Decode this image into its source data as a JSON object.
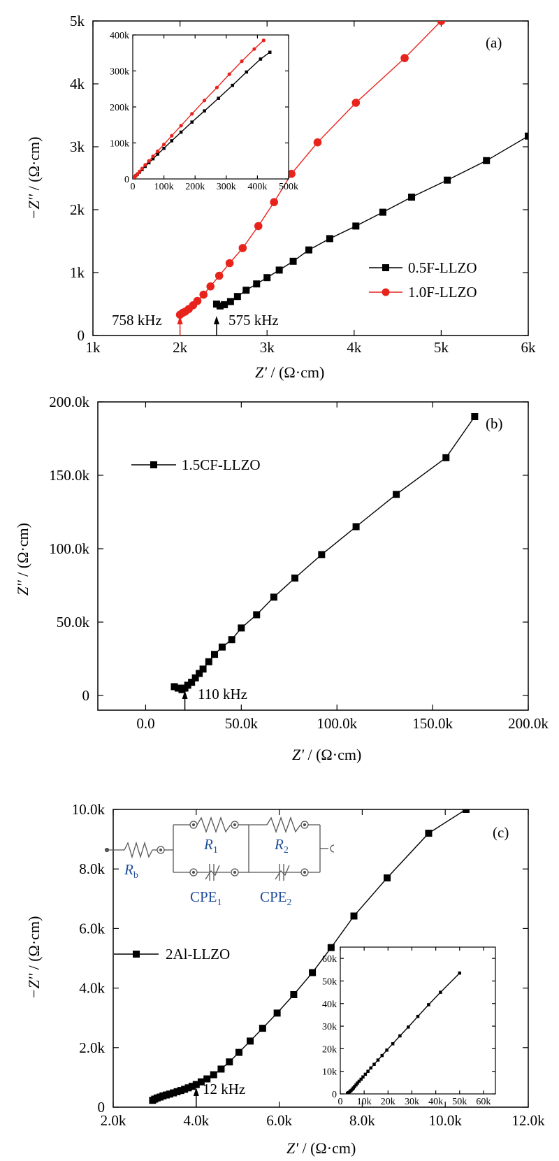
{
  "colors": {
    "black_series": "#000000",
    "red_series": "#e8231c",
    "circuit_label": "#1f4e9a",
    "circuit_line": "#555555"
  },
  "chart_data": [
    {
      "type": "scatter",
      "panel_label": "(a)",
      "xlabel_var": "Z'",
      "xlabel_unit": " / (Ω·cm)",
      "ylabel_var": "−Z''",
      "ylabel_unit": " / (Ω·cm)",
      "xlim": [
        1000,
        6000
      ],
      "ylim": [
        0,
        5000
      ],
      "x_ticks": [
        {
          "v": 1000,
          "label": "1k"
        },
        {
          "v": 2000,
          "label": "2k"
        },
        {
          "v": 3000,
          "label": "3k"
        },
        {
          "v": 4000,
          "label": "4k"
        },
        {
          "v": 5000,
          "label": "5k"
        },
        {
          "v": 6000,
          "label": "6k"
        }
      ],
      "y_ticks": [
        {
          "v": 0,
          "label": "0"
        },
        {
          "v": 1000,
          "label": "1k"
        },
        {
          "v": 2000,
          "label": "2k"
        },
        {
          "v": 3000,
          "label": "3k"
        },
        {
          "v": 4000,
          "label": "4k"
        },
        {
          "v": 5000,
          "label": "5k"
        }
      ],
      "legend_position": "lower-right",
      "series": [
        {
          "name": "0.5F-LLZO",
          "marker": "square",
          "color": "#000000",
          "x": [
            2420,
            2460,
            2510,
            2580,
            2660,
            2760,
            2880,
            3000,
            3140,
            3300,
            3480,
            3720,
            4020,
            4330,
            4660,
            5070,
            5520,
            6000
          ],
          "y": [
            500,
            470,
            490,
            540,
            620,
            720,
            820,
            920,
            1040,
            1180,
            1360,
            1540,
            1740,
            1960,
            2200,
            2470,
            2780,
            3170
          ]
        },
        {
          "name": "1.0F-LLZO",
          "marker": "circle",
          "color": "#e8231c",
          "x": [
            2000,
            2030,
            2060,
            2100,
            2150,
            2200,
            2270,
            2350,
            2450,
            2570,
            2720,
            2900,
            3080,
            3280,
            3580,
            4020,
            4580,
            5000
          ],
          "y": [
            330,
            360,
            380,
            420,
            480,
            550,
            650,
            780,
            950,
            1150,
            1390,
            1740,
            2120,
            2570,
            3070,
            3700,
            4410,
            5000
          ]
        }
      ],
      "annotations": [
        {
          "text": "758 kHz",
          "x": 2000,
          "y": 0
        },
        {
          "text": "575 kHz",
          "x": 2420,
          "y": 0
        }
      ],
      "inset": {
        "xlim": [
          0,
          500000
        ],
        "ylim": [
          0,
          400000
        ],
        "x_ticks": [
          {
            "v": 0,
            "label": "0"
          },
          {
            "v": 100000,
            "label": "100k"
          },
          {
            "v": 200000,
            "label": "200k"
          },
          {
            "v": 300000,
            "label": "300k"
          },
          {
            "v": 400000,
            "label": "400k"
          },
          {
            "v": 500000,
            "label": "500k"
          }
        ],
        "y_ticks": [
          {
            "v": 0,
            "label": "0"
          },
          {
            "v": 100000,
            "label": "100k"
          },
          {
            "v": 200000,
            "label": "200k"
          },
          {
            "v": 300000,
            "label": "300k"
          },
          {
            "v": 400000,
            "label": "400k"
          }
        ],
        "series": [
          {
            "name": "0.5F-LLZO",
            "marker": "square",
            "color": "#000000",
            "x": [
              3000,
              6000,
              10000,
              15000,
              22000,
              30000,
              40000,
              52000,
              65000,
              80000,
              100000,
              125000,
              155000,
              190000,
              230000,
              275000,
              320000,
              365000,
              410000,
              440000
            ],
            "y": [
              2000,
              5000,
              9000,
              13000,
              19000,
              26000,
              35000,
              45000,
              56000,
              69000,
              85000,
              106000,
              130000,
              158000,
              189000,
              224000,
              260000,
              297000,
              333000,
              352000
            ]
          },
          {
            "name": "1.0F-LLZO",
            "marker": "circle",
            "color": "#e8231c",
            "x": [
              3000,
              6000,
              10000,
              15000,
              22000,
              30000,
              40000,
              52000,
              65000,
              80000,
              100000,
              125000,
              155000,
              190000,
              230000,
              270000,
              310000,
              350000,
              390000,
              420000
            ],
            "y": [
              2000,
              5000,
              9500,
              14000,
              21000,
              29000,
              39000,
              50000,
              63000,
              77000,
              96000,
              120000,
              148000,
              181000,
              218000,
              254000,
              291000,
              327000,
              361000,
              385000
            ]
          }
        ]
      }
    },
    {
      "type": "scatter",
      "panel_label": "(b)",
      "xlabel_var": "Z'",
      "xlabel_unit": " / (Ω·cm)",
      "ylabel_var": "Z''",
      "ylabel_unit": " / (Ω·cm)",
      "xlim": [
        -25000,
        200000
      ],
      "ylim": [
        -10000,
        200000
      ],
      "x_ticks": [
        {
          "v": 0,
          "label": "0.0"
        },
        {
          "v": 50000,
          "label": "50.0k"
        },
        {
          "v": 100000,
          "label": "100.0k"
        },
        {
          "v": 150000,
          "label": "150.0k"
        },
        {
          "v": 200000,
          "label": "200.0k"
        }
      ],
      "y_ticks": [
        {
          "v": 0,
          "label": "0"
        },
        {
          "v": 50000,
          "label": "50.0k"
        },
        {
          "v": 100000,
          "label": "100.0k"
        },
        {
          "v": 150000,
          "label": "150.0k"
        },
        {
          "v": 200000,
          "label": "200.0k"
        }
      ],
      "legend_position": "upper-left",
      "series": [
        {
          "name": "1.5CF-LLZO",
          "marker": "square",
          "color": "#000000",
          "x": [
            15000,
            17000,
            19000,
            20500,
            22000,
            24000,
            26000,
            28000,
            30000,
            33000,
            36000,
            40000,
            45000,
            50000,
            58000,
            67000,
            78000,
            92000,
            110000,
            131000,
            157000,
            172000
          ],
          "y": [
            6000,
            5000,
            4000,
            5000,
            7000,
            9000,
            12000,
            15000,
            18000,
            23000,
            28000,
            33000,
            38000,
            46000,
            55000,
            67000,
            80000,
            96000,
            115000,
            137000,
            162000,
            190000
          ]
        }
      ],
      "annotations": [
        {
          "text": "110 kHz",
          "x": 20500,
          "y": 0
        }
      ]
    },
    {
      "type": "scatter",
      "panel_label": "(c)",
      "xlabel_var": "Z'",
      "xlabel_unit": " / (Ω·cm)",
      "ylabel_var": "−Z''",
      "ylabel_unit": " / (Ω·cm)",
      "xlim": [
        2000,
        12000
      ],
      "ylim": [
        0,
        10000
      ],
      "x_ticks": [
        {
          "v": 2000,
          "label": "2.0k"
        },
        {
          "v": 4000,
          "label": "4.0k"
        },
        {
          "v": 6000,
          "label": "6.0k"
        },
        {
          "v": 8000,
          "label": "8.0k"
        },
        {
          "v": 10000,
          "label": "10.0k"
        },
        {
          "v": 12000,
          "label": "12.0k"
        }
      ],
      "y_ticks": [
        {
          "v": 0,
          "label": "0"
        },
        {
          "v": 2000,
          "label": "2.0k"
        },
        {
          "v": 4000,
          "label": "4.0k"
        },
        {
          "v": 6000,
          "label": "6.0k"
        },
        {
          "v": 8000,
          "label": "8.0k"
        },
        {
          "v": 10000,
          "label": "10.0k"
        }
      ],
      "legend_position": "middle-left",
      "series": [
        {
          "name": "2Al-LLZO",
          "marker": "square",
          "color": "#000000",
          "x": [
            2950,
            3000,
            3060,
            3130,
            3200,
            3280,
            3360,
            3450,
            3540,
            3630,
            3720,
            3810,
            3900,
            4000,
            4120,
            4260,
            4420,
            4600,
            4800,
            5030,
            5300,
            5600,
            5950,
            6350,
            6800,
            7250,
            7800,
            8600,
            9600,
            10500
          ],
          "y": [
            230,
            270,
            310,
            340,
            380,
            410,
            440,
            480,
            520,
            560,
            600,
            650,
            700,
            760,
            850,
            950,
            1090,
            1280,
            1520,
            1840,
            2220,
            2650,
            3160,
            3780,
            4520,
            5360,
            6420,
            7700,
            9200,
            10000
          ]
        }
      ],
      "annotations": [
        {
          "text": "12 kHz",
          "x": 4000,
          "y": 0
        }
      ],
      "circuit": {
        "labels": [
          {
            "main": "R",
            "sub": "b"
          },
          {
            "main": "R",
            "sub": "1"
          },
          {
            "main": "R",
            "sub": "2"
          },
          {
            "main": "CPE",
            "sub": "1"
          },
          {
            "main": "CPE",
            "sub": "2"
          }
        ]
      },
      "inset": {
        "xlim": [
          0,
          65000
        ],
        "ylim": [
          0,
          65000
        ],
        "x_ticks": [
          {
            "v": 0,
            "label": "0"
          },
          {
            "v": 10000,
            "label": "10k"
          },
          {
            "v": 20000,
            "label": "20k"
          },
          {
            "v": 30000,
            "label": "30k"
          },
          {
            "v": 40000,
            "label": "40k"
          },
          {
            "v": 50000,
            "label": "50k"
          },
          {
            "v": 60000,
            "label": "60k"
          }
        ],
        "y_ticks": [
          {
            "v": 0,
            "label": "0"
          },
          {
            "v": 10000,
            "label": "10k"
          },
          {
            "v": 20000,
            "label": "20k"
          },
          {
            "v": 30000,
            "label": "30k"
          },
          {
            "v": 40000,
            "label": "40k"
          },
          {
            "v": 50000,
            "label": "50k"
          },
          {
            "v": 60000,
            "label": "60k"
          }
        ],
        "series": [
          {
            "name": "2Al-LLZO",
            "marker": "square",
            "color": "#000000",
            "x": [
              3000,
              3500,
              4000,
              4500,
              5000,
              5500,
              6000,
              6600,
              7200,
              7900,
              8700,
              9500,
              10500,
              11600,
              12800,
              14200,
              15800,
              17500,
              19500,
              22000,
              25000,
              28500,
              32500,
              37000,
              42000,
              50000
            ],
            "y": [
              300,
              600,
              1000,
              1500,
              2000,
              2600,
              3300,
              4000,
              4800,
              5600,
              6500,
              7500,
              8700,
              10000,
              11500,
              13100,
              15000,
              17000,
              19400,
              22200,
              25700,
              29600,
              34300,
              39500,
              45000,
              53500
            ]
          }
        ]
      }
    }
  ]
}
